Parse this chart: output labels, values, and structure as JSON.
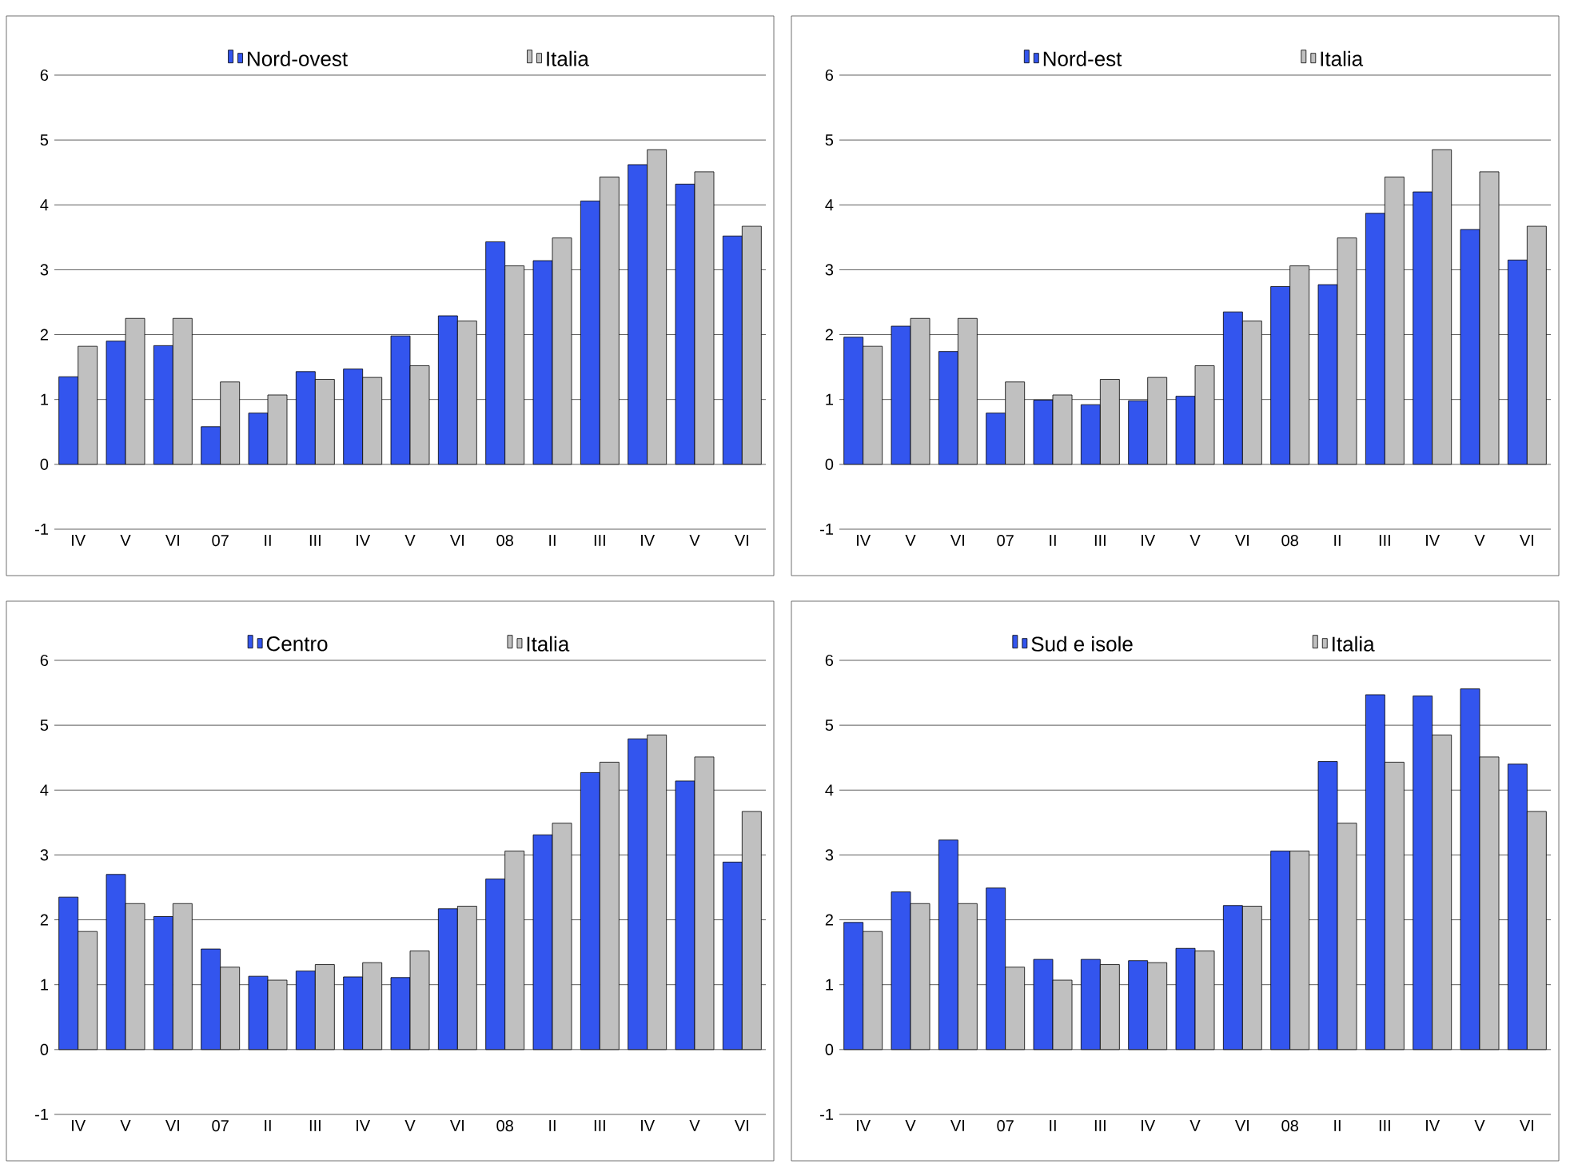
{
  "chart_data": [
    {
      "type": "bar",
      "categories": [
        "IV",
        "V",
        "VI",
        "07",
        "II",
        "III",
        "IV",
        "V",
        "VI",
        "08",
        "II",
        "III",
        "IV",
        "V",
        "VI"
      ],
      "ylim": [
        -1,
        6
      ],
      "yticks": [
        -1,
        0,
        1,
        2,
        3,
        4,
        5,
        6
      ],
      "grid": "y",
      "legend": "top",
      "series": [
        {
          "name": "Nord-ovest",
          "color": "#3355ee",
          "values": [
            1.35,
            1.9,
            1.83,
            0.58,
            0.79,
            1.43,
            1.47,
            1.98,
            2.29,
            3.43,
            3.14,
            4.06,
            4.62,
            4.32,
            3.52
          ]
        },
        {
          "name": "Italia",
          "color": "#c0c0c0",
          "values": [
            1.82,
            2.25,
            2.25,
            1.27,
            1.07,
            1.31,
            1.34,
            1.52,
            2.21,
            3.06,
            3.49,
            4.43,
            4.85,
            4.51,
            3.67
          ]
        }
      ]
    },
    {
      "type": "bar",
      "categories": [
        "IV",
        "V",
        "VI",
        "07",
        "II",
        "III",
        "IV",
        "V",
        "VI",
        "08",
        "II",
        "III",
        "IV",
        "V",
        "VI"
      ],
      "ylim": [
        -1,
        6
      ],
      "yticks": [
        -1,
        0,
        1,
        2,
        3,
        4,
        5,
        6
      ],
      "grid": "y",
      "legend": "top",
      "series": [
        {
          "name": "Nord-est",
          "color": "#3355ee",
          "values": [
            1.96,
            2.13,
            1.74,
            0.79,
            0.99,
            0.92,
            0.98,
            1.05,
            2.35,
            2.74,
            2.77,
            3.87,
            4.2,
            3.62,
            3.15
          ]
        },
        {
          "name": "Italia",
          "color": "#c0c0c0",
          "values": [
            1.82,
            2.25,
            2.25,
            1.27,
            1.07,
            1.31,
            1.34,
            1.52,
            2.21,
            3.06,
            3.49,
            4.43,
            4.85,
            4.51,
            3.67
          ]
        }
      ]
    },
    {
      "type": "bar",
      "categories": [
        "IV",
        "V",
        "VI",
        "07",
        "II",
        "III",
        "IV",
        "V",
        "VI",
        "08",
        "II",
        "III",
        "IV",
        "V",
        "VI"
      ],
      "ylim": [
        -1,
        6
      ],
      "yticks": [
        -1,
        0,
        1,
        2,
        3,
        4,
        5,
        6
      ],
      "grid": "y",
      "legend": "top",
      "series": [
        {
          "name": "Centro",
          "color": "#3355ee",
          "values": [
            2.35,
            2.7,
            2.05,
            1.55,
            1.13,
            1.21,
            1.12,
            1.11,
            2.17,
            2.63,
            3.31,
            4.27,
            4.79,
            4.14,
            2.89
          ]
        },
        {
          "name": "Italia",
          "color": "#c0c0c0",
          "values": [
            1.82,
            2.25,
            2.25,
            1.27,
            1.07,
            1.31,
            1.34,
            1.52,
            2.21,
            3.06,
            3.49,
            4.43,
            4.85,
            4.51,
            3.67
          ]
        }
      ]
    },
    {
      "type": "bar",
      "categories": [
        "IV",
        "V",
        "VI",
        "07",
        "II",
        "III",
        "IV",
        "V",
        "VI",
        "08",
        "II",
        "III",
        "IV",
        "V",
        "VI"
      ],
      "ylim": [
        -1,
        6
      ],
      "yticks": [
        -1,
        0,
        1,
        2,
        3,
        4,
        5,
        6
      ],
      "grid": "y",
      "legend": "top",
      "series": [
        {
          "name": "Sud e isole",
          "color": "#3355ee",
          "values": [
            1.96,
            2.43,
            3.23,
            2.49,
            1.39,
            1.39,
            1.37,
            1.56,
            2.22,
            3.06,
            4.44,
            5.47,
            5.45,
            5.56,
            4.4
          ]
        },
        {
          "name": "Italia",
          "color": "#c0c0c0",
          "values": [
            1.82,
            2.25,
            2.25,
            1.27,
            1.07,
            1.31,
            1.34,
            1.52,
            2.21,
            3.06,
            3.49,
            4.43,
            4.85,
            4.51,
            3.67
          ]
        }
      ]
    }
  ]
}
